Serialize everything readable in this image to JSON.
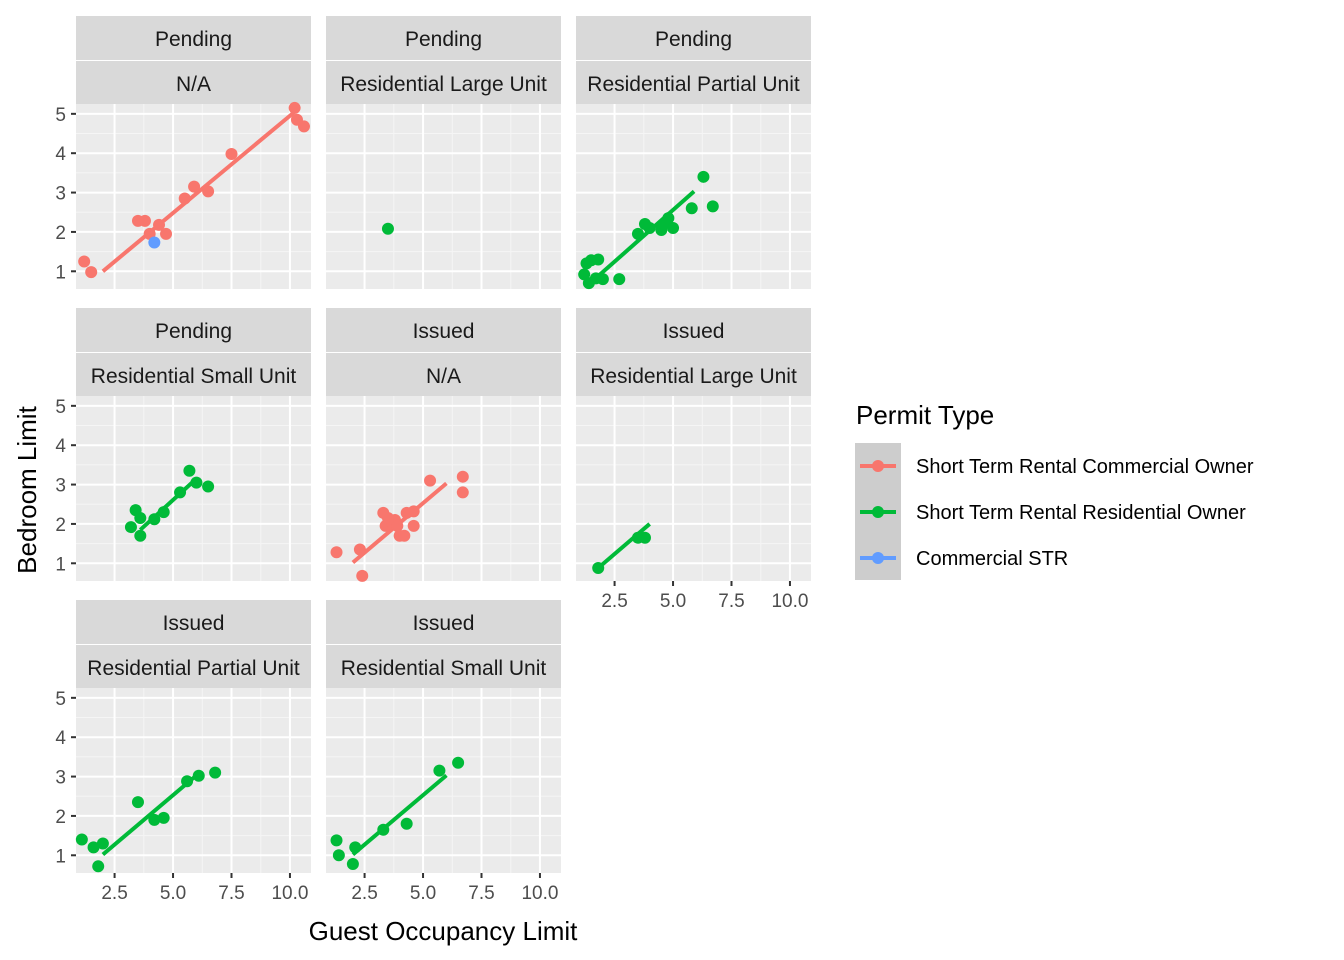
{
  "chart_data": {
    "type": "scatter",
    "xlabel": "Guest Occupancy Limit",
    "ylabel": "Bedroom Limit",
    "xlim": [
      0.85,
      10.9
    ],
    "ylim": [
      0.55,
      5.25
    ],
    "x_ticks": [
      "2.5",
      "5.0",
      "7.5",
      "10.0"
    ],
    "x_tick_values": [
      2.5,
      5.0,
      7.5,
      10.0
    ],
    "y_ticks": [
      "1",
      "2",
      "3",
      "4",
      "5"
    ],
    "y_tick_values": [
      1,
      2,
      3,
      4,
      5
    ],
    "grid": true,
    "legend": {
      "title": "Permit Type",
      "position": "right",
      "entries": [
        {
          "name": "Short Term Rental Commercial Owner",
          "color": "#F8766D"
        },
        {
          "name": "Short Term Rental Residential Owner",
          "color": "#00BA38"
        },
        {
          "name": "Commercial STR",
          "color": "#619CFF"
        }
      ]
    },
    "panels": [
      {
        "status": "Pending",
        "category": "N/A",
        "points": [
          {
            "x": 1.2,
            "y": 1.25,
            "s": 0
          },
          {
            "x": 1.5,
            "y": 0.98,
            "s": 0
          },
          {
            "x": 3.5,
            "y": 2.28,
            "s": 0
          },
          {
            "x": 3.8,
            "y": 2.28,
            "s": 0
          },
          {
            "x": 4.0,
            "y": 1.95,
            "s": 0
          },
          {
            "x": 4.4,
            "y": 2.18,
            "s": 0
          },
          {
            "x": 4.7,
            "y": 1.95,
            "s": 0
          },
          {
            "x": 5.5,
            "y": 2.85,
            "s": 0
          },
          {
            "x": 5.9,
            "y": 3.15,
            "s": 0
          },
          {
            "x": 6.5,
            "y": 3.03,
            "s": 0
          },
          {
            "x": 7.5,
            "y": 3.98,
            "s": 0
          },
          {
            "x": 10.2,
            "y": 5.15,
            "s": 0
          },
          {
            "x": 10.3,
            "y": 4.85,
            "s": 0
          },
          {
            "x": 10.6,
            "y": 4.68,
            "s": 0
          },
          {
            "x": 4.2,
            "y": 1.73,
            "s": 2
          }
        ],
        "fits": [
          {
            "s": 0,
            "x0": 2.0,
            "y0": 1.0,
            "x1": 10.2,
            "y1": 5.05
          }
        ]
      },
      {
        "status": "Pending",
        "category": "Residential Large Unit",
        "points": [
          {
            "x": 3.5,
            "y": 2.08,
            "s": 1
          }
        ],
        "fits": []
      },
      {
        "status": "Pending",
        "category": "Residential Partial Unit",
        "points": [
          {
            "x": 1.2,
            "y": 0.92,
            "s": 1
          },
          {
            "x": 1.3,
            "y": 1.2,
            "s": 1
          },
          {
            "x": 1.5,
            "y": 1.28,
            "s": 1
          },
          {
            "x": 1.4,
            "y": 0.7,
            "s": 1
          },
          {
            "x": 1.7,
            "y": 0.82,
            "s": 1
          },
          {
            "x": 2.0,
            "y": 0.8,
            "s": 1
          },
          {
            "x": 1.8,
            "y": 1.3,
            "s": 1
          },
          {
            "x": 2.7,
            "y": 0.8,
            "s": 1
          },
          {
            "x": 3.5,
            "y": 1.95,
            "s": 1
          },
          {
            "x": 3.8,
            "y": 2.2,
            "s": 1
          },
          {
            "x": 4.0,
            "y": 2.1,
            "s": 1
          },
          {
            "x": 4.5,
            "y": 2.05,
            "s": 1
          },
          {
            "x": 4.6,
            "y": 2.2,
            "s": 1
          },
          {
            "x": 4.8,
            "y": 2.35,
            "s": 1
          },
          {
            "x": 5.0,
            "y": 2.1,
            "s": 1
          },
          {
            "x": 5.8,
            "y": 2.6,
            "s": 1
          },
          {
            "x": 6.3,
            "y": 3.4,
            "s": 1
          },
          {
            "x": 6.7,
            "y": 2.65,
            "s": 1
          }
        ],
        "fits": [
          {
            "s": 1,
            "x0": 1.5,
            "y0": 0.72,
            "x1": 5.9,
            "y1": 3.03
          }
        ]
      },
      {
        "status": "Pending",
        "category": "Residential Small Unit",
        "points": [
          {
            "x": 3.2,
            "y": 1.92,
            "s": 1
          },
          {
            "x": 3.4,
            "y": 2.35,
            "s": 1
          },
          {
            "x": 3.6,
            "y": 2.15,
            "s": 1
          },
          {
            "x": 3.6,
            "y": 1.7,
            "s": 1
          },
          {
            "x": 4.2,
            "y": 2.12,
            "s": 1
          },
          {
            "x": 4.6,
            "y": 2.3,
            "s": 1
          },
          {
            "x": 5.3,
            "y": 2.8,
            "s": 1
          },
          {
            "x": 5.7,
            "y": 3.35,
            "s": 1
          },
          {
            "x": 6.0,
            "y": 3.05,
            "s": 1
          },
          {
            "x": 6.5,
            "y": 2.95,
            "s": 1
          }
        ],
        "fits": [
          {
            "s": 1,
            "x0": 3.6,
            "y0": 1.85,
            "x1": 6.0,
            "y1": 3.15
          }
        ]
      },
      {
        "status": "Issued",
        "category": "N/A",
        "points": [
          {
            "x": 1.3,
            "y": 1.28,
            "s": 0
          },
          {
            "x": 2.3,
            "y": 1.35,
            "s": 0
          },
          {
            "x": 2.4,
            "y": 0.68,
            "s": 0
          },
          {
            "x": 3.3,
            "y": 2.28,
            "s": 0
          },
          {
            "x": 3.4,
            "y": 1.95,
            "s": 0
          },
          {
            "x": 3.5,
            "y": 2.15,
            "s": 0
          },
          {
            "x": 3.7,
            "y": 2.0,
            "s": 0
          },
          {
            "x": 3.8,
            "y": 2.1,
            "s": 0
          },
          {
            "x": 3.9,
            "y": 1.95,
            "s": 0
          },
          {
            "x": 4.0,
            "y": 1.7,
            "s": 0
          },
          {
            "x": 4.2,
            "y": 1.7,
            "s": 0
          },
          {
            "x": 4.3,
            "y": 2.28,
            "s": 0
          },
          {
            "x": 4.6,
            "y": 2.32,
            "s": 0
          },
          {
            "x": 4.6,
            "y": 1.95,
            "s": 0
          },
          {
            "x": 5.3,
            "y": 3.1,
            "s": 0
          },
          {
            "x": 6.7,
            "y": 3.2,
            "s": 0
          },
          {
            "x": 6.7,
            "y": 2.8,
            "s": 0
          }
        ],
        "fits": [
          {
            "s": 0,
            "x0": 2.0,
            "y0": 1.02,
            "x1": 6.0,
            "y1": 3.03
          }
        ]
      },
      {
        "status": "Issued",
        "category": "Residential Large Unit",
        "points": [
          {
            "x": 1.8,
            "y": 0.88,
            "s": 1
          },
          {
            "x": 3.5,
            "y": 1.65,
            "s": 1
          },
          {
            "x": 3.8,
            "y": 1.65,
            "s": 1
          }
        ],
        "fits": [
          {
            "s": 1,
            "x0": 1.8,
            "y0": 0.88,
            "x1": 4.0,
            "y1": 2.0
          }
        ]
      },
      {
        "status": "Issued",
        "category": "Residential Partial Unit",
        "points": [
          {
            "x": 1.1,
            "y": 1.4,
            "s": 1
          },
          {
            "x": 1.6,
            "y": 1.2,
            "s": 1
          },
          {
            "x": 1.8,
            "y": 0.72,
            "s": 1
          },
          {
            "x": 2.0,
            "y": 1.3,
            "s": 1
          },
          {
            "x": 3.5,
            "y": 2.35,
            "s": 1
          },
          {
            "x": 4.2,
            "y": 1.9,
            "s": 1
          },
          {
            "x": 4.6,
            "y": 1.95,
            "s": 1
          },
          {
            "x": 5.6,
            "y": 2.88,
            "s": 1
          },
          {
            "x": 6.1,
            "y": 3.02,
            "s": 1
          },
          {
            "x": 6.8,
            "y": 3.1,
            "s": 1
          }
        ],
        "fits": [
          {
            "s": 1,
            "x0": 2.0,
            "y0": 1.02,
            "x1": 6.0,
            "y1": 3.03
          }
        ]
      },
      {
        "status": "Issued",
        "category": "Residential Small Unit",
        "points": [
          {
            "x": 1.3,
            "y": 1.38,
            "s": 1
          },
          {
            "x": 1.4,
            "y": 1.0,
            "s": 1
          },
          {
            "x": 2.0,
            "y": 0.78,
            "s": 1
          },
          {
            "x": 2.1,
            "y": 1.2,
            "s": 1
          },
          {
            "x": 3.3,
            "y": 1.65,
            "s": 1
          },
          {
            "x": 4.3,
            "y": 1.8,
            "s": 1
          },
          {
            "x": 5.7,
            "y": 3.15,
            "s": 1
          },
          {
            "x": 6.5,
            "y": 3.35,
            "s": 1
          }
        ],
        "fits": [
          {
            "s": 1,
            "x0": 2.0,
            "y0": 1.02,
            "x1": 6.0,
            "y1": 3.03
          }
        ]
      }
    ]
  }
}
